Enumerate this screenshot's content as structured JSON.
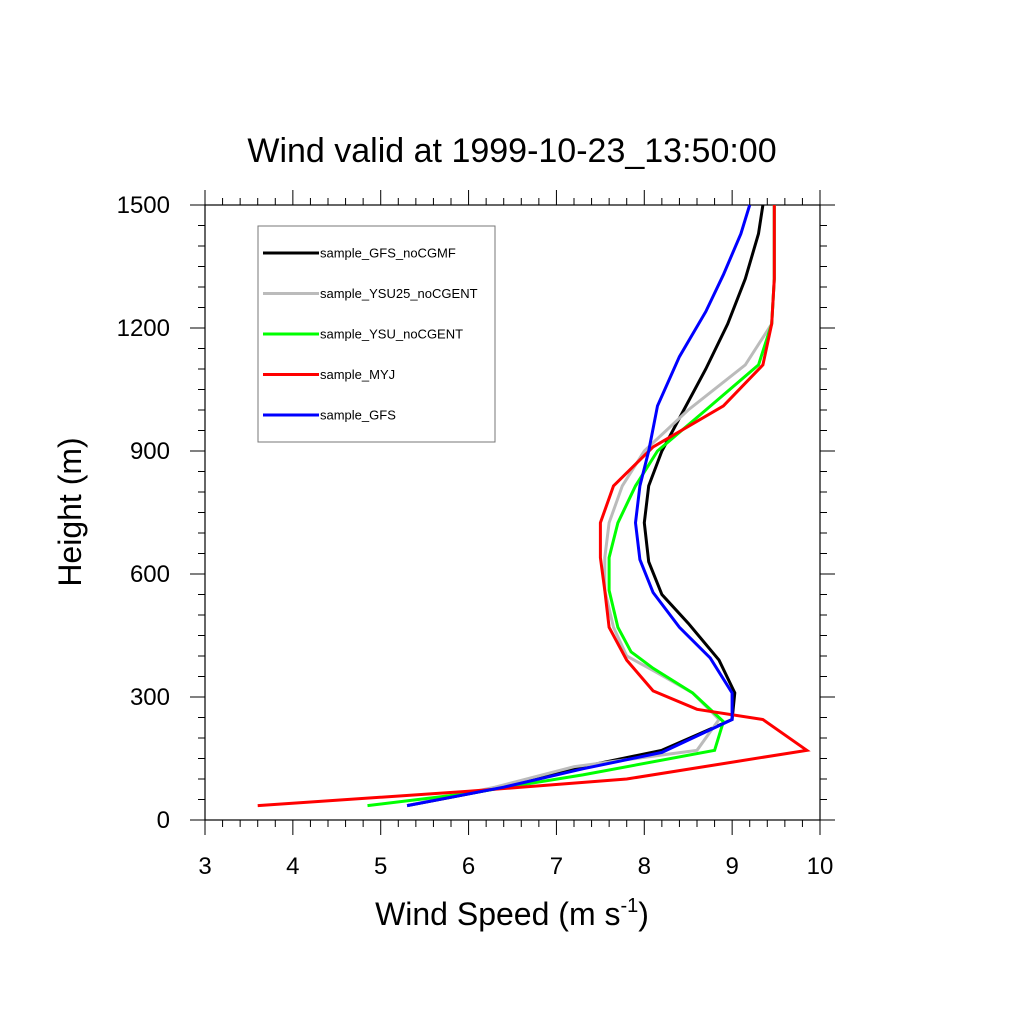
{
  "chart_data": {
    "type": "line",
    "title": "Wind valid at 1999-10-23_13:50:00",
    "xlabel": "Wind Speed (m s",
    "xlabel_sup": "-1",
    "xlabel_close": ")",
    "ylabel": "Height (m)",
    "xlim": [
      3,
      10
    ],
    "ylim": [
      0,
      1500
    ],
    "xticks": [
      "3",
      "4",
      "5",
      "6",
      "7",
      "8",
      "9",
      "10"
    ],
    "yticks": [
      "0",
      "300",
      "600",
      "900",
      "1200",
      "1500"
    ],
    "grid": false,
    "legend_position": "top-left",
    "series": [
      {
        "name": "sample_GFS_noCGMF",
        "color": "#000000",
        "points": [
          [
            5.3,
            35
          ],
          [
            6.4,
            80
          ],
          [
            7.3,
            130
          ],
          [
            8.2,
            170
          ],
          [
            9.0,
            245
          ],
          [
            9.03,
            310
          ],
          [
            8.85,
            390
          ],
          [
            8.5,
            480
          ],
          [
            8.2,
            550
          ],
          [
            8.05,
            630
          ],
          [
            8.0,
            725
          ],
          [
            8.05,
            815
          ],
          [
            8.2,
            900
          ],
          [
            8.45,
            1000
          ],
          [
            8.7,
            1100
          ],
          [
            8.95,
            1210
          ],
          [
            9.15,
            1320
          ],
          [
            9.3,
            1430
          ],
          [
            9.35,
            1500
          ]
        ]
      },
      {
        "name": "sample_YSU25_noCGENT",
        "color": "#bbbbbb",
        "points": [
          [
            5.3,
            35
          ],
          [
            6.3,
            80
          ],
          [
            7.2,
            130
          ],
          [
            8.6,
            170
          ],
          [
            8.85,
            245
          ],
          [
            8.55,
            310
          ],
          [
            8.1,
            365
          ],
          [
            7.8,
            400
          ],
          [
            7.65,
            470
          ],
          [
            7.55,
            560
          ],
          [
            7.55,
            640
          ],
          [
            7.6,
            725
          ],
          [
            7.75,
            815
          ],
          [
            8.0,
            900
          ],
          [
            8.5,
            1000
          ],
          [
            9.15,
            1110
          ],
          [
            9.45,
            1210
          ],
          [
            9.48,
            1320
          ],
          [
            9.48,
            1500
          ]
        ]
      },
      {
        "name": "sample_YSU_noCGENT",
        "color": "#00ff00",
        "points": [
          [
            4.85,
            35
          ],
          [
            6.0,
            65
          ],
          [
            7.3,
            110
          ],
          [
            8.8,
            170
          ],
          [
            8.9,
            240
          ],
          [
            8.55,
            310
          ],
          [
            8.1,
            370
          ],
          [
            7.85,
            410
          ],
          [
            7.7,
            470
          ],
          [
            7.6,
            560
          ],
          [
            7.6,
            640
          ],
          [
            7.7,
            725
          ],
          [
            7.9,
            815
          ],
          [
            8.15,
            900
          ],
          [
            8.7,
            1000
          ],
          [
            9.3,
            1110
          ],
          [
            9.45,
            1210
          ],
          [
            9.48,
            1320
          ],
          [
            9.48,
            1500
          ]
        ]
      },
      {
        "name": "sample_MYJ",
        "color": "#ff0000",
        "points": [
          [
            3.6,
            35
          ],
          [
            6.0,
            70
          ],
          [
            7.8,
            100
          ],
          [
            9.85,
            170
          ],
          [
            9.35,
            245
          ],
          [
            8.6,
            270
          ],
          [
            8.1,
            315
          ],
          [
            7.8,
            390
          ],
          [
            7.6,
            470
          ],
          [
            7.55,
            560
          ],
          [
            7.5,
            640
          ],
          [
            7.5,
            725
          ],
          [
            7.65,
            815
          ],
          [
            8.1,
            910
          ],
          [
            8.9,
            1010
          ],
          [
            9.35,
            1110
          ],
          [
            9.45,
            1210
          ],
          [
            9.48,
            1320
          ],
          [
            9.48,
            1500
          ]
        ]
      },
      {
        "name": "sample_GFS",
        "color": "#0000ff",
        "points": [
          [
            5.3,
            35
          ],
          [
            6.4,
            80
          ],
          [
            7.3,
            125
          ],
          [
            8.2,
            165
          ],
          [
            9.0,
            245
          ],
          [
            9.0,
            310
          ],
          [
            8.75,
            395
          ],
          [
            8.4,
            470
          ],
          [
            8.1,
            555
          ],
          [
            7.95,
            635
          ],
          [
            7.9,
            725
          ],
          [
            7.95,
            815
          ],
          [
            8.05,
            900
          ],
          [
            8.15,
            1010
          ],
          [
            8.4,
            1130
          ],
          [
            8.7,
            1240
          ],
          [
            8.9,
            1330
          ],
          [
            9.1,
            1430
          ],
          [
            9.2,
            1500
          ]
        ]
      }
    ]
  }
}
